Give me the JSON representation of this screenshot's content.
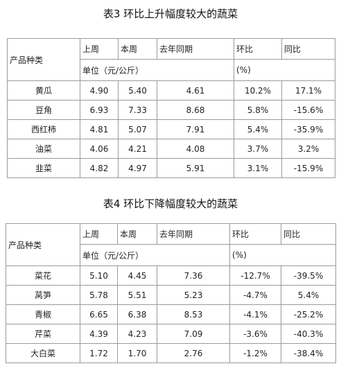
{
  "table1": {
    "title": "表3 环比上升幅度较大的蔬菜",
    "headers": {
      "product": "产品种类",
      "last_week": "上周",
      "this_week": "本周",
      "last_year": "去年同期",
      "mom": "环比",
      "yoy": "同比",
      "unit": "单位（元/公斤）",
      "percent": "(%)"
    },
    "rows": [
      {
        "name": "黄瓜",
        "last_week": "4.90",
        "this_week": "5.40",
        "last_year": "4.61",
        "mom": "10.2%",
        "yoy": "17.1%"
      },
      {
        "name": "豆角",
        "last_week": "6.93",
        "this_week": "7.33",
        "last_year": "8.68",
        "mom": "5.8%",
        "yoy": "-15.6%"
      },
      {
        "name": "西红柿",
        "last_week": "4.81",
        "this_week": "5.07",
        "last_year": "7.91",
        "mom": "5.4%",
        "yoy": "-35.9%"
      },
      {
        "name": "油菜",
        "last_week": "4.06",
        "this_week": "4.21",
        "last_year": "4.08",
        "mom": "3.7%",
        "yoy": "3.2%"
      },
      {
        "name": "韭菜",
        "last_week": "4.82",
        "this_week": "4.97",
        "last_year": "5.91",
        "mom": "3.1%",
        "yoy": "-15.9%"
      }
    ]
  },
  "table2": {
    "title": "表4 环比下降幅度较大的蔬菜",
    "headers": {
      "product": "产品种类",
      "last_week": "上周",
      "this_week": "本周",
      "last_year": "去年同期",
      "mom": "环比",
      "yoy": "同比",
      "unit": "单位（元/公斤）",
      "percent": "(%)"
    },
    "rows": [
      {
        "name": "菜花",
        "last_week": "5.10",
        "this_week": "4.45",
        "last_year": "7.36",
        "mom": "-12.7%",
        "yoy": "-39.5%"
      },
      {
        "name": "莴笋",
        "last_week": "5.78",
        "this_week": "5.51",
        "last_year": "5.23",
        "mom": "-4.7%",
        "yoy": "5.4%"
      },
      {
        "name": "青椒",
        "last_week": "6.65",
        "this_week": "6.38",
        "last_year": "8.53",
        "mom": "-4.1%",
        "yoy": "-25.2%"
      },
      {
        "name": "芹菜",
        "last_week": "4.39",
        "this_week": "4.23",
        "last_year": "7.09",
        "mom": "-3.6%",
        "yoy": "-40.3%"
      },
      {
        "name": "大白菜",
        "last_week": "1.72",
        "this_week": "1.70",
        "last_year": "2.76",
        "mom": "-1.2%",
        "yoy": "-38.4%"
      }
    ]
  }
}
